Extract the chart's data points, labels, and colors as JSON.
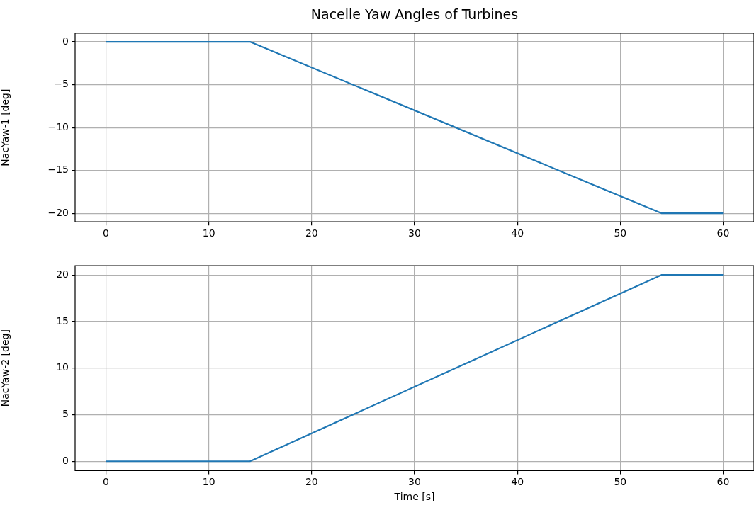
{
  "chart_data": [
    {
      "type": "line",
      "title": "Nacelle Yaw Angles of Turbines",
      "ylabel": "NacYaw-1 [deg]",
      "x": [
        0,
        14,
        54,
        60
      ],
      "values": [
        0,
        0,
        -20,
        -20
      ],
      "color": "#1f77b4",
      "xlim": [
        -3,
        63
      ],
      "ylim": [
        -21,
        1
      ],
      "xticks": [
        0,
        10,
        20,
        30,
        40,
        50,
        60
      ],
      "yticks": [
        -20,
        -15,
        -10,
        -5,
        0
      ],
      "grid": true
    },
    {
      "type": "line",
      "xlabel": "Time [s]",
      "ylabel": "NacYaw-2 [deg]",
      "x": [
        0,
        14,
        54,
        60
      ],
      "values": [
        0,
        0,
        20,
        20
      ],
      "color": "#1f77b4",
      "xlim": [
        -3,
        63
      ],
      "ylim": [
        -1,
        21
      ],
      "xticks": [
        0,
        10,
        20,
        30,
        40,
        50,
        60
      ],
      "yticks": [
        0,
        5,
        10,
        15,
        20
      ],
      "grid": true
    }
  ]
}
